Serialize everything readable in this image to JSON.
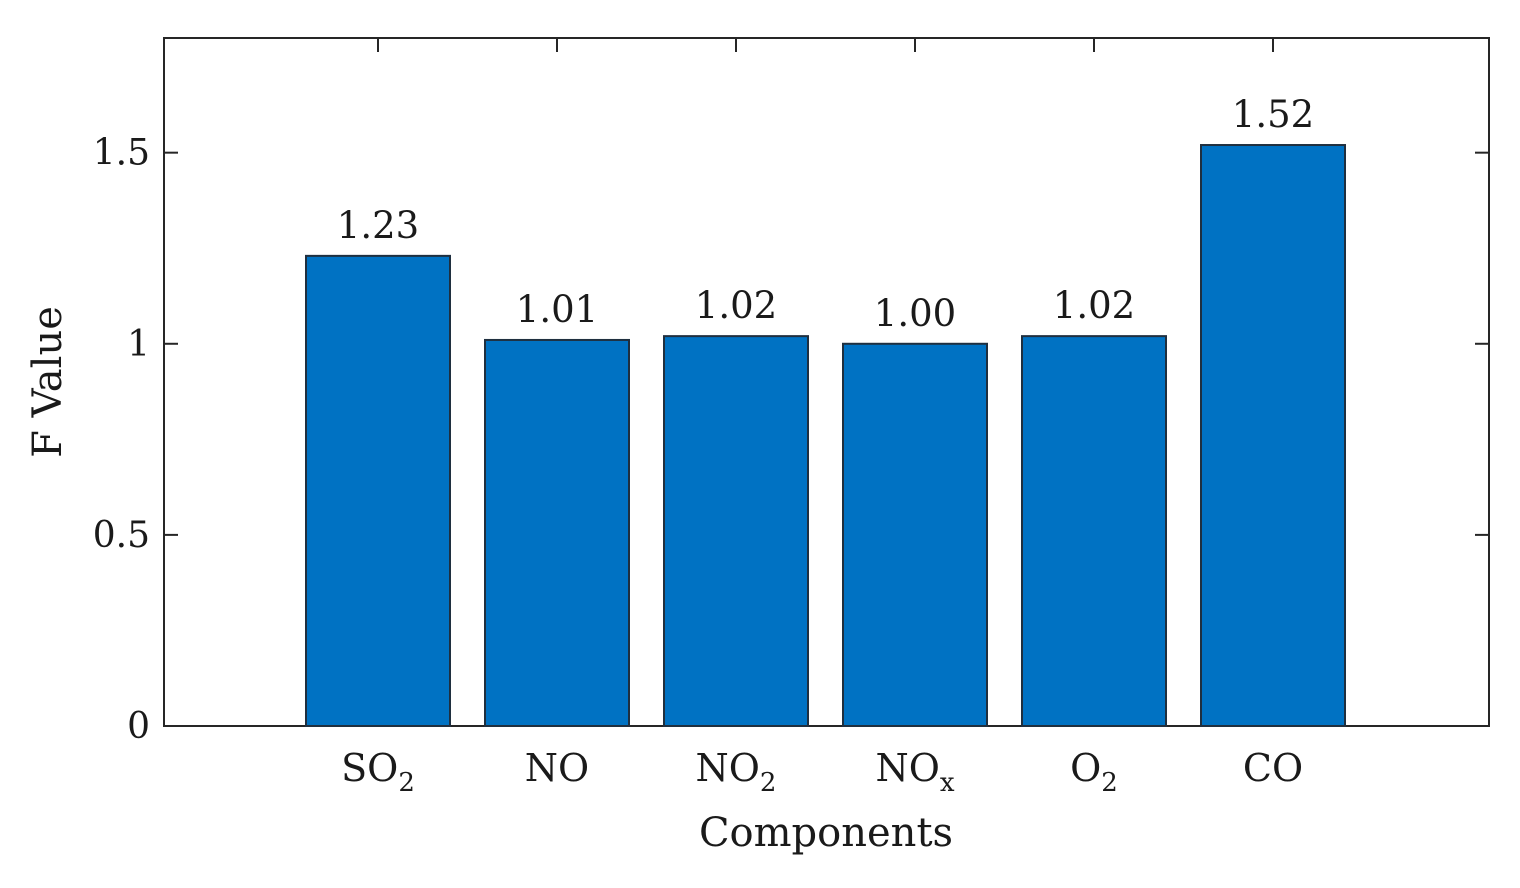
{
  "chart_data": {
    "type": "bar",
    "categories": [
      {
        "base": "SO",
        "sub": "2"
      },
      {
        "base": "NO",
        "sub": ""
      },
      {
        "base": "NO",
        "sub": "2"
      },
      {
        "base": "NO",
        "sub": "x"
      },
      {
        "base": "O",
        "sub": "2"
      },
      {
        "base": "CO",
        "sub": ""
      }
    ],
    "values": [
      1.23,
      1.01,
      1.02,
      1.0,
      1.02,
      1.52
    ],
    "data_labels": [
      "1.23",
      "1.01",
      "1.02",
      "1.00",
      "1.02",
      "1.52"
    ],
    "xlabel": "Components",
    "ylabel": "F Value",
    "ylim": [
      0,
      1.8
    ],
    "yticks": [
      0,
      0.5,
      1,
      1.5
    ],
    "ytick_labels": [
      "0",
      "0.5",
      "1",
      "1.5"
    ],
    "grid": false,
    "colors": {
      "bar": "#0072c3",
      "bar_edge": "#1f2f3f",
      "axis": "#262626"
    }
  }
}
